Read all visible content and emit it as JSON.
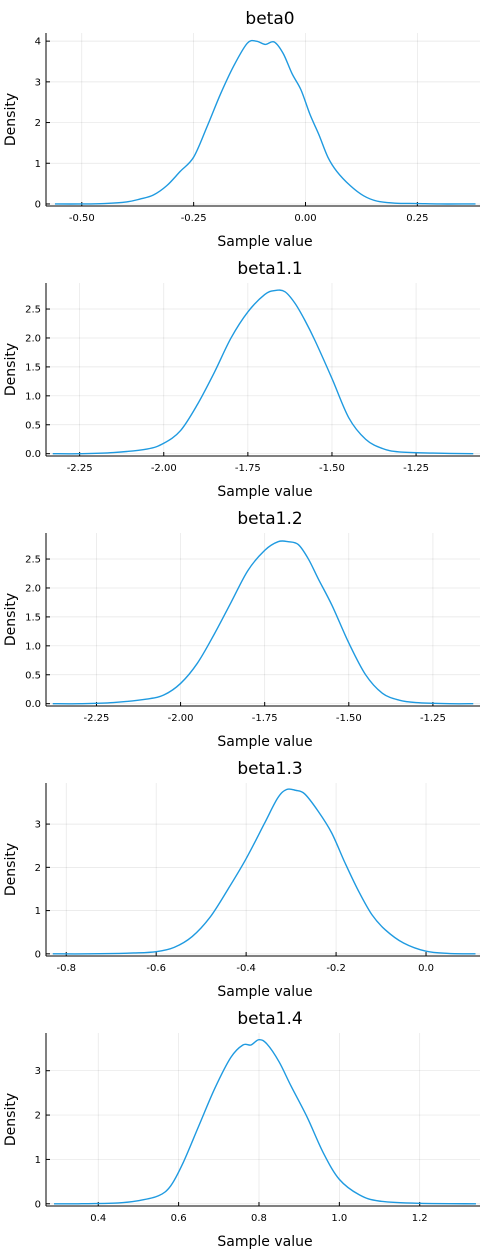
{
  "figure": {
    "line_color": "#1f9ae0",
    "grid": true,
    "legend": "none"
  },
  "chart_data": [
    {
      "type": "line",
      "title": "beta0",
      "xlabel": "Sample value",
      "ylabel": "Density",
      "xlim": [
        -0.58,
        0.39
      ],
      "ylim": [
        -0.05,
        4.2
      ],
      "xticks": [
        -0.5,
        -0.25,
        0.0,
        0.25
      ],
      "xtick_labels": [
        "-0.50",
        "-0.25",
        "0.00",
        "0.25"
      ],
      "yticks": [
        0,
        1,
        2,
        3,
        4
      ],
      "ytick_labels": [
        "0",
        "1",
        "2",
        "3",
        "4"
      ],
      "series": [
        {
          "x": [
            -0.56,
            -0.5,
            -0.45,
            -0.4,
            -0.37,
            -0.34,
            -0.31,
            -0.28,
            -0.25,
            -0.22,
            -0.19,
            -0.16,
            -0.13,
            -0.11,
            -0.09,
            -0.07,
            -0.05,
            -0.03,
            -0.01,
            0.01,
            0.03,
            0.05,
            0.07,
            0.1,
            0.13,
            0.16,
            0.2,
            0.25,
            0.3,
            0.35,
            0.38
          ],
          "y": [
            0.0,
            0.0,
            0.01,
            0.05,
            0.12,
            0.22,
            0.45,
            0.8,
            1.15,
            1.9,
            2.7,
            3.4,
            3.95,
            4.0,
            3.92,
            3.98,
            3.7,
            3.2,
            2.8,
            2.2,
            1.7,
            1.15,
            0.8,
            0.45,
            0.2,
            0.07,
            0.02,
            0.01,
            0.0,
            0.0,
            0.0
          ]
        }
      ]
    },
    {
      "type": "line",
      "title": "beta1.1",
      "xlabel": "Sample value",
      "ylabel": "Density",
      "xlim": [
        -2.35,
        -1.06
      ],
      "ylim": [
        -0.04,
        2.95
      ],
      "xticks": [
        -2.25,
        -2.0,
        -1.75,
        -1.5,
        -1.25
      ],
      "xtick_labels": [
        "-2.25",
        "-2.00",
        "-1.75",
        "-1.50",
        "-1.25"
      ],
      "yticks": [
        0,
        0.5,
        1.0,
        1.5,
        2.0,
        2.5
      ],
      "ytick_labels": [
        "0.0",
        "0.5",
        "1.0",
        "1.5",
        "2.0",
        "2.5"
      ],
      "series": [
        {
          "x": [
            -2.33,
            -2.25,
            -2.15,
            -2.05,
            -2.0,
            -1.95,
            -1.9,
            -1.85,
            -1.8,
            -1.75,
            -1.7,
            -1.67,
            -1.64,
            -1.61,
            -1.58,
            -1.55,
            -1.5,
            -1.45,
            -1.4,
            -1.35,
            -1.3,
            -1.2,
            -1.08
          ],
          "y": [
            0.0,
            0.0,
            0.02,
            0.08,
            0.18,
            0.4,
            0.85,
            1.4,
            2.0,
            2.45,
            2.75,
            2.82,
            2.8,
            2.6,
            2.3,
            1.95,
            1.3,
            0.62,
            0.25,
            0.09,
            0.03,
            0.01,
            0.0
          ]
        }
      ]
    },
    {
      "type": "line",
      "title": "beta1.2",
      "xlabel": "Sample value",
      "ylabel": "Density",
      "xlim": [
        -2.4,
        -1.11
      ],
      "ylim": [
        -0.04,
        2.95
      ],
      "xticks": [
        -2.25,
        -2.0,
        -1.75,
        -1.5,
        -1.25
      ],
      "xtick_labels": [
        "-2.25",
        "-2.00",
        "-1.75",
        "-1.50",
        "-1.25"
      ],
      "yticks": [
        0,
        0.5,
        1.0,
        1.5,
        2.0,
        2.5
      ],
      "ytick_labels": [
        "0.0",
        "0.5",
        "1.0",
        "1.5",
        "2.0",
        "2.5"
      ],
      "series": [
        {
          "x": [
            -2.38,
            -2.3,
            -2.2,
            -2.1,
            -2.05,
            -2.0,
            -1.95,
            -1.9,
            -1.85,
            -1.8,
            -1.75,
            -1.71,
            -1.68,
            -1.65,
            -1.62,
            -1.59,
            -1.55,
            -1.5,
            -1.45,
            -1.4,
            -1.35,
            -1.3,
            -1.2,
            -1.13
          ],
          "y": [
            0.0,
            0.0,
            0.02,
            0.08,
            0.15,
            0.35,
            0.7,
            1.2,
            1.75,
            2.3,
            2.65,
            2.8,
            2.8,
            2.75,
            2.5,
            2.15,
            1.7,
            1.05,
            0.5,
            0.18,
            0.06,
            0.02,
            0.0,
            0.0
          ]
        }
      ]
    },
    {
      "type": "line",
      "title": "beta1.3",
      "xlabel": "Sample value",
      "ylabel": "Density",
      "xlim": [
        -0.845,
        0.12
      ],
      "ylim": [
        -0.05,
        3.95
      ],
      "xticks": [
        -0.8,
        -0.6,
        -0.4,
        -0.2,
        0.0
      ],
      "xtick_labels": [
        "-0.8",
        "-0.6",
        "-0.4",
        "-0.2",
        "0.0"
      ],
      "yticks": [
        0,
        1,
        2,
        3
      ],
      "ytick_labels": [
        "0",
        "1",
        "2",
        "3"
      ],
      "series": [
        {
          "x": [
            -0.83,
            -0.75,
            -0.65,
            -0.6,
            -0.56,
            -0.52,
            -0.48,
            -0.44,
            -0.4,
            -0.36,
            -0.33,
            -0.31,
            -0.29,
            -0.27,
            -0.24,
            -0.21,
            -0.18,
            -0.15,
            -0.12,
            -0.09,
            -0.05,
            0.0,
            0.05,
            0.11
          ],
          "y": [
            0.0,
            0.0,
            0.02,
            0.05,
            0.15,
            0.4,
            0.85,
            1.5,
            2.2,
            3.0,
            3.6,
            3.8,
            3.78,
            3.7,
            3.3,
            2.8,
            2.1,
            1.45,
            0.9,
            0.55,
            0.25,
            0.06,
            0.01,
            0.0
          ]
        }
      ]
    },
    {
      "type": "line",
      "title": "beta1.4",
      "xlabel": "Sample value",
      "ylabel": "Density",
      "xlim": [
        0.27,
        1.35
      ],
      "ylim": [
        -0.05,
        3.85
      ],
      "xticks": [
        0.4,
        0.6,
        0.8,
        1.0,
        1.2
      ],
      "xtick_labels": [
        "0.4",
        "0.6",
        "0.8",
        "1.0",
        "1.2"
      ],
      "yticks": [
        0,
        1,
        2,
        3
      ],
      "ytick_labels": [
        "0",
        "1",
        "2",
        "3"
      ],
      "series": [
        {
          "x": [
            0.29,
            0.35,
            0.45,
            0.5,
            0.55,
            0.58,
            0.61,
            0.65,
            0.69,
            0.73,
            0.76,
            0.78,
            0.8,
            0.82,
            0.85,
            0.88,
            0.92,
            0.96,
            1.0,
            1.05,
            1.1,
            1.2,
            1.34
          ],
          "y": [
            0.0,
            0.0,
            0.02,
            0.07,
            0.18,
            0.4,
            0.9,
            1.75,
            2.6,
            3.3,
            3.58,
            3.58,
            3.7,
            3.6,
            3.2,
            2.65,
            1.95,
            1.15,
            0.55,
            0.2,
            0.06,
            0.01,
            0.0
          ]
        }
      ]
    }
  ]
}
